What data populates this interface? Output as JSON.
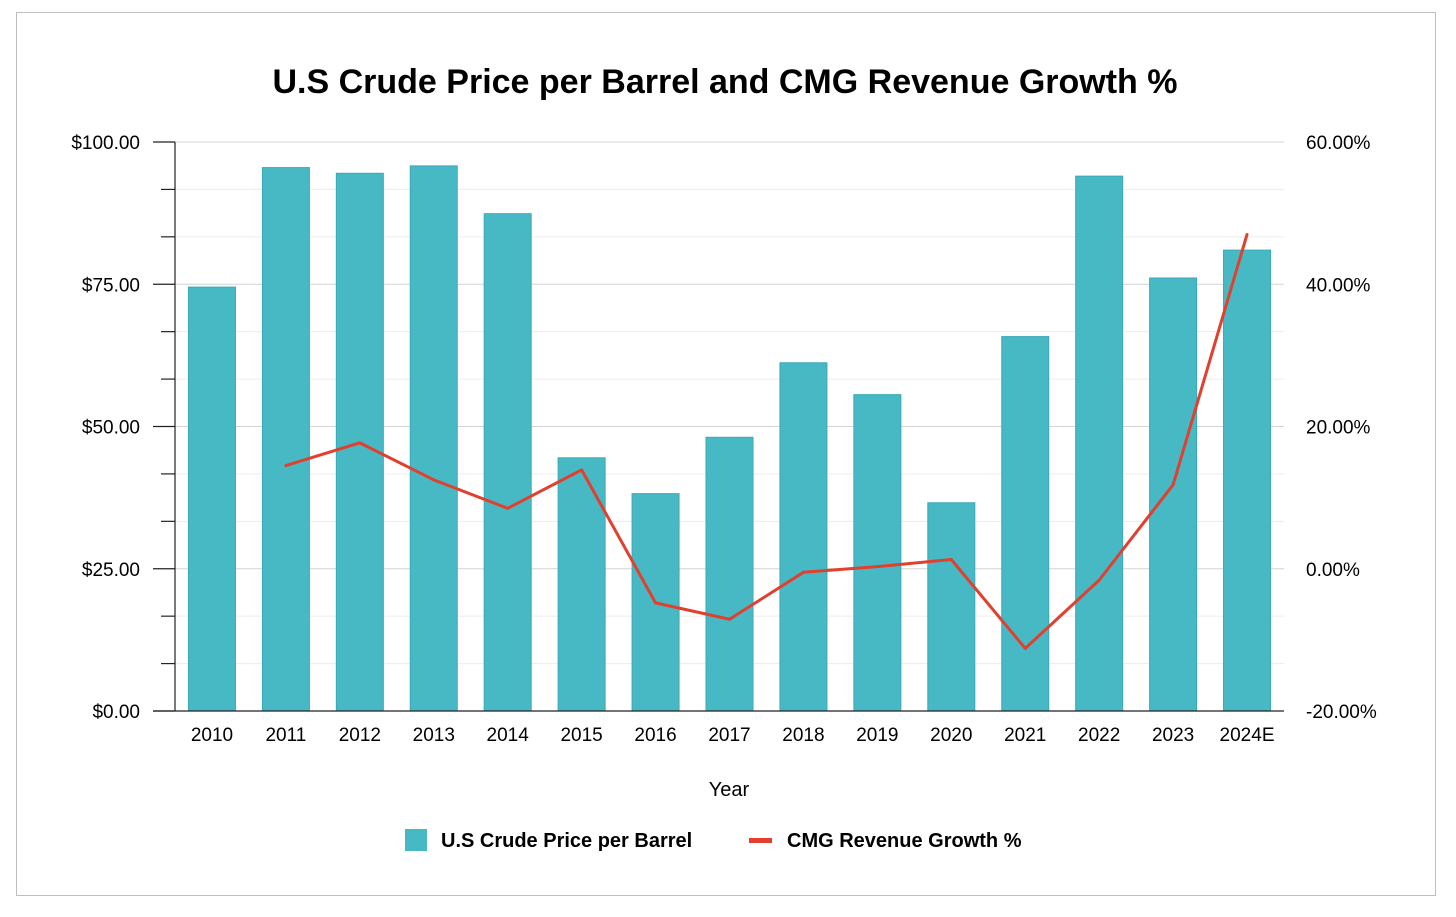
{
  "chart_data": {
    "type": "bar",
    "title": "U.S Crude Price per Barrel and CMG Revenue Growth %",
    "xlabel": "Year",
    "ylabel": "",
    "y2label": "",
    "categories": [
      "2010",
      "2011",
      "2012",
      "2013",
      "2014",
      "2015",
      "2016",
      "2017",
      "2018",
      "2019",
      "2020",
      "2021",
      "2022",
      "2023",
      "2024E"
    ],
    "ylim": [
      0,
      100
    ],
    "y2lim": [
      -20,
      60
    ],
    "yticks": [
      "$0.00",
      "$25.00",
      "$50.00",
      "$75.00",
      "$100.00"
    ],
    "y2ticks": [
      "-20.00%",
      "0.00%",
      "20.00%",
      "40.00%",
      "60.00%"
    ],
    "grid": true,
    "legend_position": "bottom",
    "series": [
      {
        "name": "U.S Crude Price per Barrel",
        "type": "bar",
        "axis": "left",
        "color": "#47B9C5",
        "values": [
          74.5,
          95.5,
          94.5,
          95.8,
          87.4,
          44.5,
          38.2,
          48.1,
          61.2,
          55.6,
          36.6,
          65.8,
          94.0,
          76.1,
          81.0
        ]
      },
      {
        "name": "CMG Revenue Growth %",
        "type": "line",
        "axis": "right",
        "color": "#E2402E",
        "values": [
          null,
          14.5,
          17.7,
          12.5,
          8.5,
          13.9,
          -4.8,
          -7.1,
          -0.5,
          0.3,
          1.3,
          -11.2,
          -1.6,
          11.8,
          47.0
        ]
      }
    ]
  }
}
